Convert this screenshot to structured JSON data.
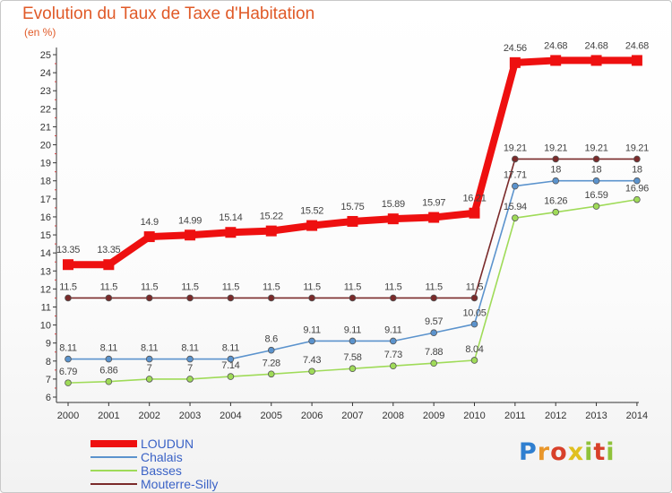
{
  "title": "Evolution du Taux de Taxe d'Habitation",
  "subtitle": "(en %)",
  "logo": "Proxiti",
  "chart_data": {
    "type": "line",
    "title": "Evolution du Taux de Taxe d'Habitation",
    "ylabel": "(en %)",
    "xlabel": "",
    "x": [
      "2000",
      "2001",
      "2002",
      "2003",
      "2004",
      "2005",
      "2006",
      "2007",
      "2008",
      "2009",
      "2010",
      "2011",
      "2012",
      "2013",
      "2014"
    ],
    "ylim": [
      6,
      25
    ],
    "yticks": [
      6,
      7,
      8,
      9,
      10,
      11,
      12,
      13,
      14,
      15,
      16,
      17,
      18,
      19,
      20,
      21,
      22,
      23,
      24,
      25
    ],
    "grid": false,
    "legend": "bottom-left",
    "series": [
      {
        "name": "LOUDUN",
        "color": "#ee1010",
        "values": [
          13.35,
          13.35,
          14.9,
          14.99,
          15.14,
          15.22,
          15.52,
          15.75,
          15.89,
          15.97,
          16.21,
          24.56,
          24.68,
          24.68,
          24.68
        ],
        "labels": [
          "13.35",
          "13.35",
          "14.9",
          "14.99",
          "15.14",
          "15.22",
          "15.52",
          "15.75",
          "15.89",
          "15.97",
          "16.21",
          "24.56",
          "24.68",
          "24.68",
          "24.68"
        ]
      },
      {
        "name": "Chalais",
        "color": "#5b93cd",
        "values": [
          8.11,
          8.11,
          8.11,
          8.11,
          8.11,
          8.6,
          9.11,
          9.11,
          9.11,
          9.57,
          10.05,
          17.71,
          18,
          18,
          18
        ],
        "labels": [
          "8.11",
          "8.11",
          "8.11",
          "8.11",
          "8.11",
          "8.6",
          "9.11",
          "9.11",
          "9.11",
          "9.57",
          "10.05",
          "17.71",
          "18",
          "18",
          "18"
        ]
      },
      {
        "name": "Basses",
        "color": "#9fdb58",
        "values": [
          6.79,
          6.86,
          7,
          7,
          7.14,
          7.28,
          7.43,
          7.58,
          7.73,
          7.88,
          8.04,
          15.94,
          16.26,
          16.59,
          16.96
        ],
        "labels": [
          "6.79",
          "6.86",
          "7",
          "7",
          "7.14",
          "7.28",
          "7.43",
          "7.58",
          "7.73",
          "7.88",
          "8.04",
          "15.94",
          "16.26",
          "16.59",
          "16.96"
        ]
      },
      {
        "name": "Mouterre-Silly",
        "color": "#7a2a2a",
        "values": [
          11.5,
          11.5,
          11.5,
          11.5,
          11.5,
          11.5,
          11.5,
          11.5,
          11.5,
          11.5,
          11.5,
          19.21,
          19.21,
          19.21,
          19.21
        ],
        "labels": [
          "11.5",
          "11.5",
          "11.5",
          "11.5",
          "11.5",
          "11.5",
          "11.5",
          "11.5",
          "11.5",
          "11.5",
          "11.5",
          "19.21",
          "19.21",
          "19.21",
          "19.21"
        ]
      }
    ]
  }
}
